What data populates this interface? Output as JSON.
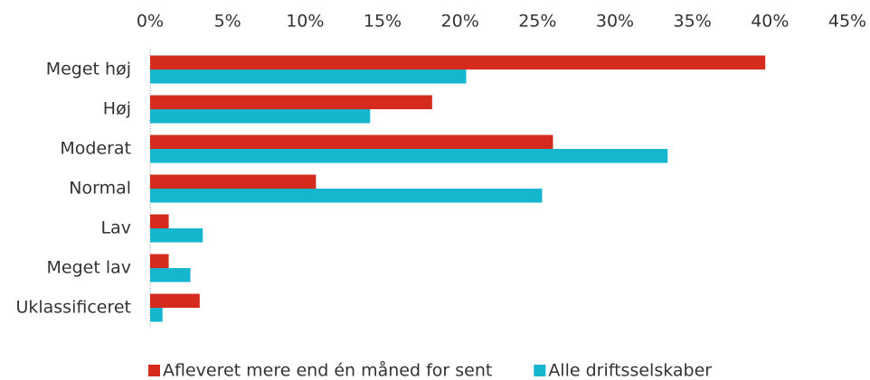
{
  "chart_data": {
    "type": "bar",
    "orientation": "horizontal",
    "categories": [
      "Meget høj",
      "Høj",
      "Moderat",
      "Normal",
      "Lav",
      "Meget lav",
      "Uklassificeret"
    ],
    "series": [
      {
        "name": "Afleveret mere end én måned for sent",
        "color": "#d52b1e",
        "values": [
          39.7,
          18.2,
          26.0,
          10.7,
          1.2,
          1.2,
          3.2
        ]
      },
      {
        "name": "Alle driftsselskaber",
        "color": "#17b6cf",
        "values": [
          20.4,
          14.2,
          33.4,
          25.3,
          3.4,
          2.6,
          0.8
        ]
      }
    ],
    "xlim": [
      0,
      45
    ],
    "xticks": [
      {
        "value": 0,
        "label": "0%"
      },
      {
        "value": 5,
        "label": "5%"
      },
      {
        "value": 10,
        "label": "10%"
      },
      {
        "value": 15,
        "label": "15%"
      },
      {
        "value": 20,
        "label": "20%"
      },
      {
        "value": 25,
        "label": "25%"
      },
      {
        "value": 30,
        "label": "30%"
      },
      {
        "value": 35,
        "label": "35%"
      },
      {
        "value": 40,
        "label": "40%"
      },
      {
        "value": 45,
        "label": "45%"
      }
    ],
    "legend": "bottom"
  }
}
